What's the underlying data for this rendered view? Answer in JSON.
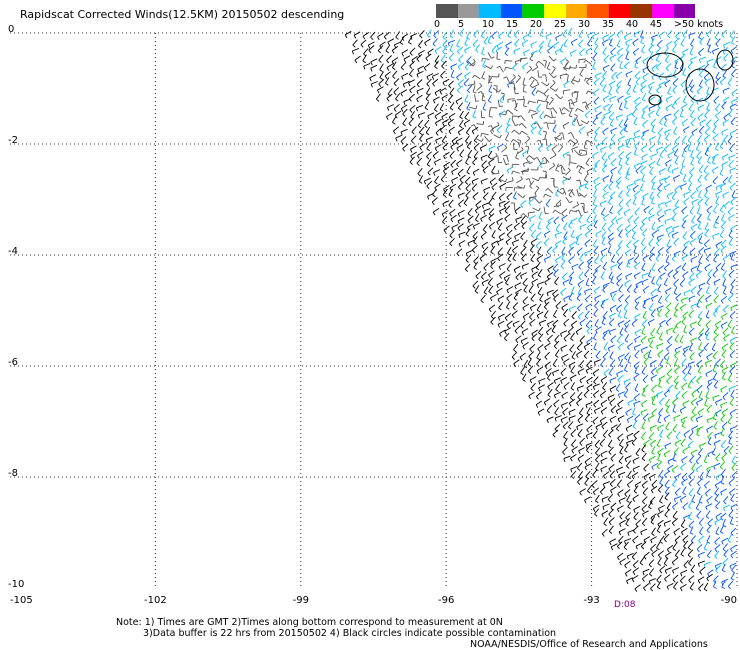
{
  "title": "Rapidscat Corrected Winds(12.5KM) 20150502 descending",
  "legend": {
    "colors": [
      "#555555",
      "#999999",
      "#00bbff",
      "#0055ff",
      "#00cc00",
      "#ffff00",
      "#ffaa00",
      "#ff5500",
      "#ff0000",
      "#993300",
      "#ff00ff",
      "#8800aa"
    ],
    "labels": [
      "0",
      "5",
      "10",
      "15",
      "20",
      "25",
      "30",
      "35",
      "40",
      "45",
      ">50 knots"
    ]
  },
  "axes": {
    "lon_labels": [
      "-105",
      "-102",
      "-99",
      "-96",
      "-93",
      "-90"
    ],
    "lat_labels": [
      "0",
      "-2",
      "-4",
      "-6",
      "-8",
      "-10"
    ]
  },
  "time_label": "D:08",
  "notes": {
    "line1": "Note: 1) Times are GMT 2)Times along bottom correspond to measurement at 0N",
    "line2": "3)Data buffer is 22 hrs from 20150502 4) Black circles indicate possible contamination",
    "line3": "NOAA/NESDIS/Office of Research and Applications"
  }
}
